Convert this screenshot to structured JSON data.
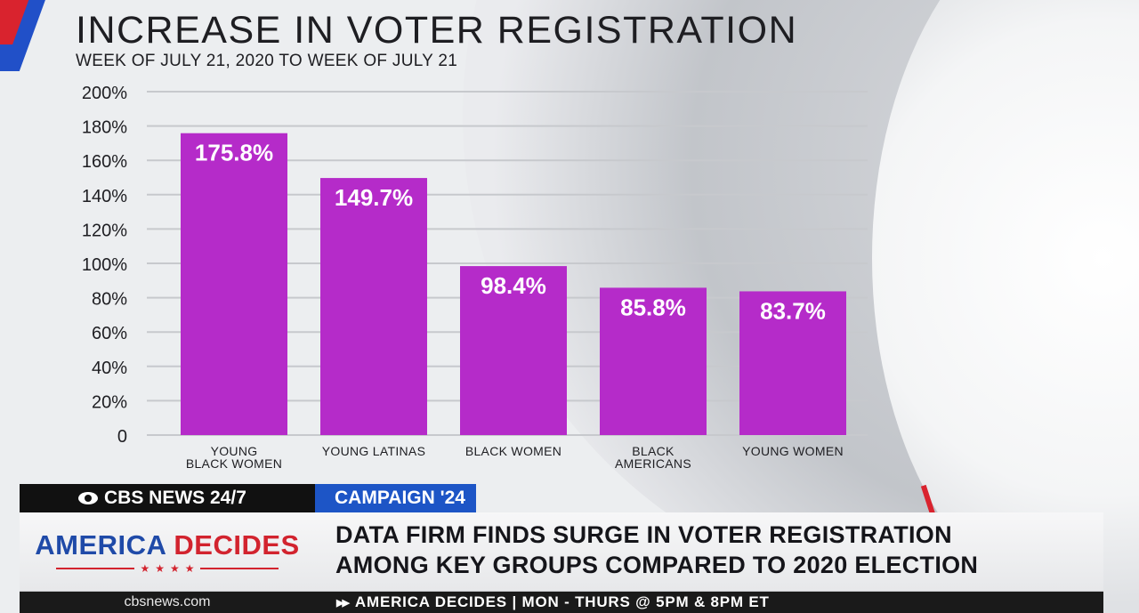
{
  "chart_data": {
    "type": "bar",
    "title": "INCREASE IN VOTER REGISTRATION",
    "subtitle": "WEEK OF JULY 21, 2020 TO WEEK OF JULY 21",
    "categories": [
      [
        "YOUNG",
        "BLACK WOMEN"
      ],
      [
        "YOUNG LATINAS"
      ],
      [
        "BLACK WOMEN"
      ],
      [
        "BLACK",
        "AMERICANS"
      ],
      [
        "YOUNG WOMEN"
      ]
    ],
    "values": [
      175.8,
      149.7,
      98.4,
      85.8,
      83.7
    ],
    "data_labels": [
      "175.8%",
      "149.7%",
      "98.4%",
      "85.8%",
      "83.7%"
    ],
    "y_ticks": [
      0,
      20,
      40,
      60,
      80,
      100,
      120,
      140,
      160,
      180,
      200
    ],
    "y_tick_labels": [
      "0",
      "20%",
      "40%",
      "60%",
      "80%",
      "100%",
      "120%",
      "140%",
      "160%",
      "180%",
      "200%"
    ],
    "ylim": [
      0,
      200
    ],
    "grid": true,
    "bar_color": "#b52bc9",
    "label_color": "#ffffff"
  },
  "ticker": {
    "network": "CBS NEWS 24/7",
    "segment": "CAMPAIGN '24",
    "show_name_line1": "AMERICA",
    "show_name_line2": "DECIDES",
    "headline_line1": "DATA FIRM FINDS SURGE IN VOTER REGISTRATION",
    "headline_line2": "AMONG KEY GROUPS COMPARED TO 2020 ELECTION",
    "site": "cbsnews.com",
    "crawl": "AMERICA DECIDES | MON - THURS @ 5PM & 8PM ET"
  },
  "colors": {
    "network_bg": "#111111",
    "segment_bg": "#1d55c6",
    "brand_blue": "#1f4aa8",
    "brand_red": "#d2232e"
  }
}
